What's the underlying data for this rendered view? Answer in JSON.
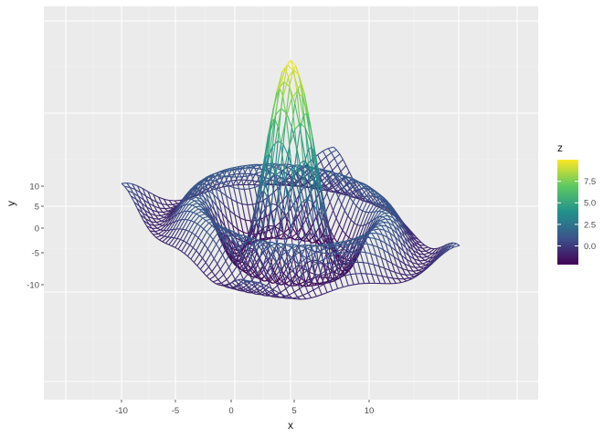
{
  "chart_data": {
    "type": "line",
    "subtype": "3d-wireframe",
    "title": "",
    "xlabel": "x",
    "ylabel": "y",
    "x_ticks": [
      "-10",
      "-5",
      "0",
      "5",
      "10"
    ],
    "y_ticks": [
      "10",
      "5",
      "0",
      "-5",
      "-10"
    ],
    "x_range": [
      -10,
      10
    ],
    "y_range": [
      -10,
      10
    ],
    "surface": "z = 10*sin(r)/r, r = sqrt(x^2 + y^2)",
    "z_range": [
      -2.17,
      10
    ],
    "grid": true,
    "panel_background": "#ebebeb",
    "legend": {
      "title": "z",
      "position": "right",
      "labels": [
        "7.5",
        "5.0",
        "2.5",
        "0.0"
      ],
      "values": [
        7.5,
        5.0,
        2.5,
        0.0
      ],
      "colormap": [
        "#440154",
        "#3b528b",
        "#21918c",
        "#5ec962",
        "#fde725"
      ]
    }
  }
}
